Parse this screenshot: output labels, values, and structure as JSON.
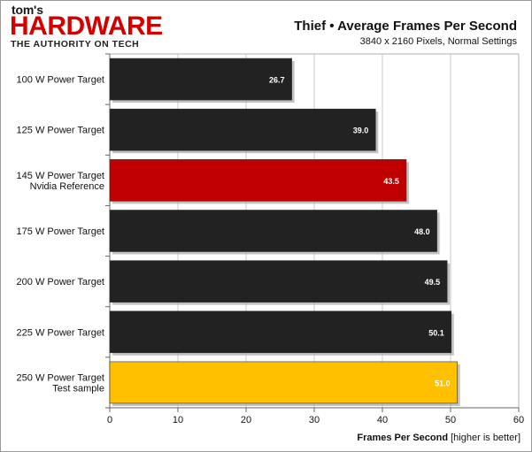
{
  "logo": {
    "small": "tom's",
    "main": "HARDWARE",
    "tagline": "THE AUTHORITY ON TECH"
  },
  "chart_data": {
    "type": "bar",
    "orientation": "horizontal",
    "title": "Thief • Average Frames Per Second",
    "subtitle": "3840 x 2160  Pixels, Normal Settings",
    "xlabel_bold": "Frames Per Second",
    "xlabel_note": "[higher is better]",
    "xlim": [
      0,
      60
    ],
    "xticks": [
      0,
      10,
      20,
      30,
      40,
      50,
      60
    ],
    "grid": true,
    "categories": [
      [
        "100 W Power Target"
      ],
      [
        "125 W Power Target"
      ],
      [
        "145 W Power Target",
        "Nvidia Reference"
      ],
      [
        "175 W Power Target"
      ],
      [
        "200 W Power Target"
      ],
      [
        "225 W Power Target"
      ],
      [
        "250 W Power Target",
        "Test sample"
      ]
    ],
    "values": [
      26.7,
      39.0,
      43.5,
      48.0,
      49.5,
      50.1,
      51.0
    ],
    "value_labels": [
      "26.7",
      "39.0",
      "43.5",
      "48.0",
      "49.5",
      "50.1",
      "51.0"
    ],
    "bar_colors": [
      "#222222",
      "#222222",
      "#c00000",
      "#222222",
      "#222222",
      "#222222",
      "#ffc000"
    ],
    "value_label_colors": [
      "#ffffff",
      "#ffffff",
      "#ffffff",
      "#ffffff",
      "#ffffff",
      "#ffffff",
      "#ffffff"
    ]
  }
}
